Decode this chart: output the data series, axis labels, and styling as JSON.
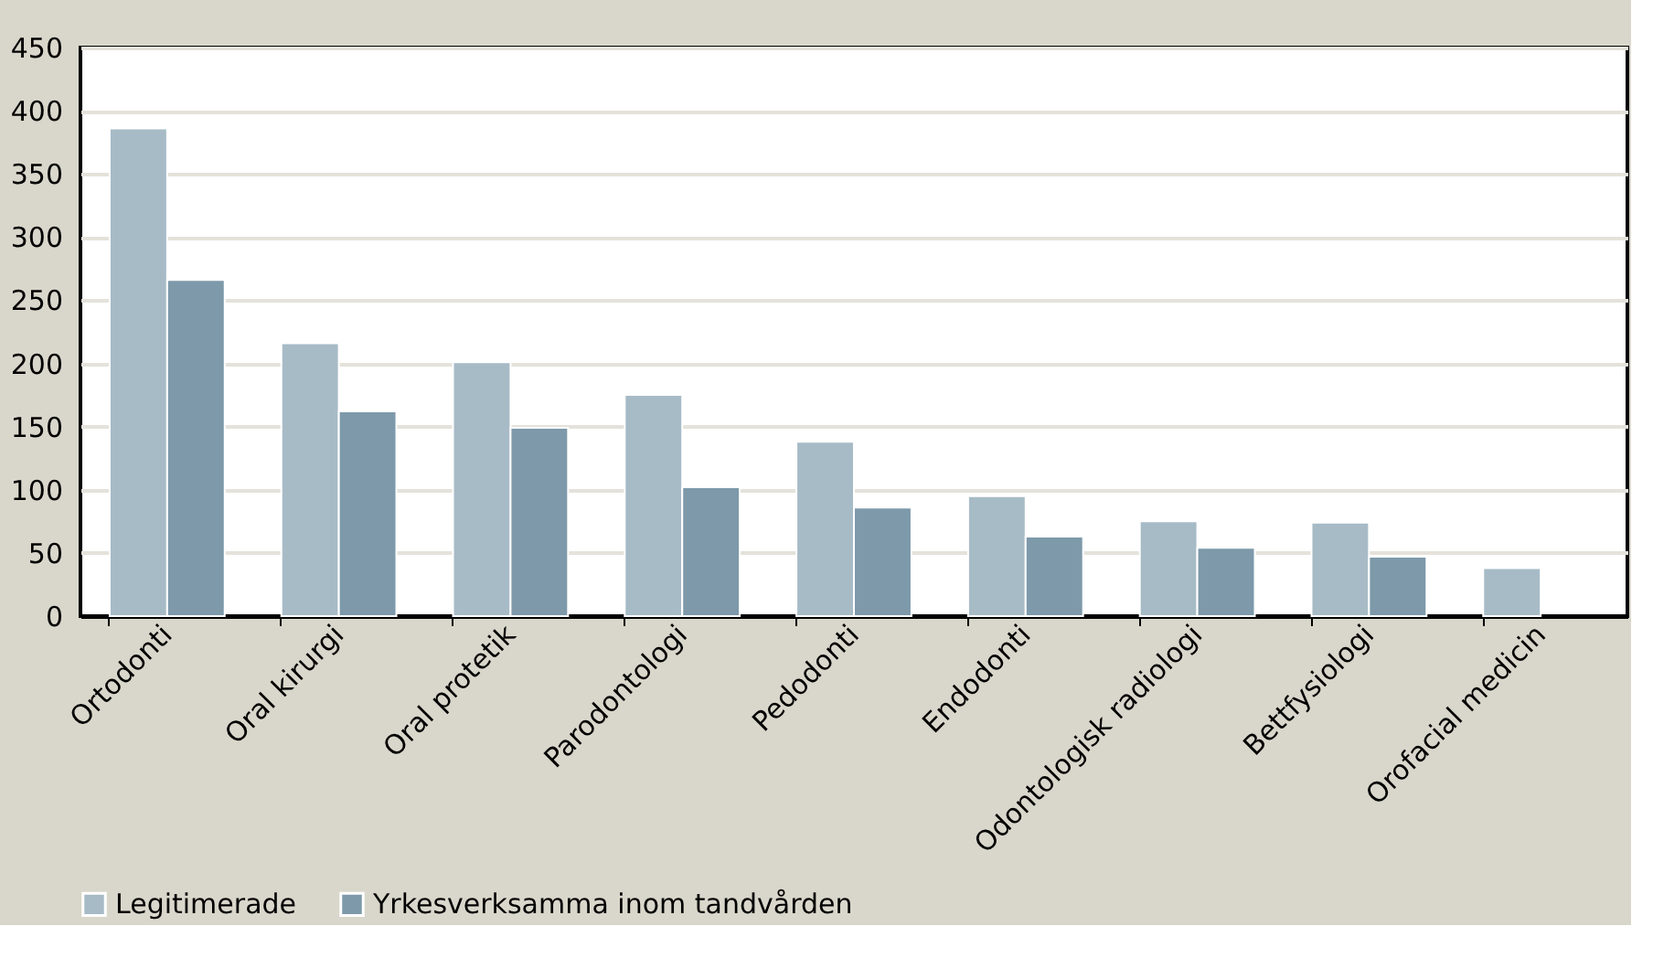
{
  "chart_data": {
    "type": "bar",
    "categories": [
      "Ortodonti",
      "Oral kirurgi",
      "Oral protetik",
      "Parodontologi",
      "Pedodonti",
      "Endodonti",
      "Odontologisk radiologi",
      "Bettfysiologi",
      "Orofacial medicin"
    ],
    "series": [
      {
        "name": "Legitimerade",
        "color": "#a7bbc6",
        "values": [
          386,
          216,
          201,
          175,
          138,
          95,
          75,
          74,
          38
        ]
      },
      {
        "name": "Yrkesverksamma inom tandvården",
        "color": "#7d99aa",
        "values": [
          266,
          162,
          149,
          102,
          86,
          63,
          54,
          47,
          null
        ]
      }
    ],
    "ylim": [
      0,
      450
    ],
    "yticks": [
      0,
      50,
      100,
      150,
      200,
      250,
      300,
      350,
      400,
      450
    ],
    "grid": "y",
    "legend": "bottom"
  }
}
